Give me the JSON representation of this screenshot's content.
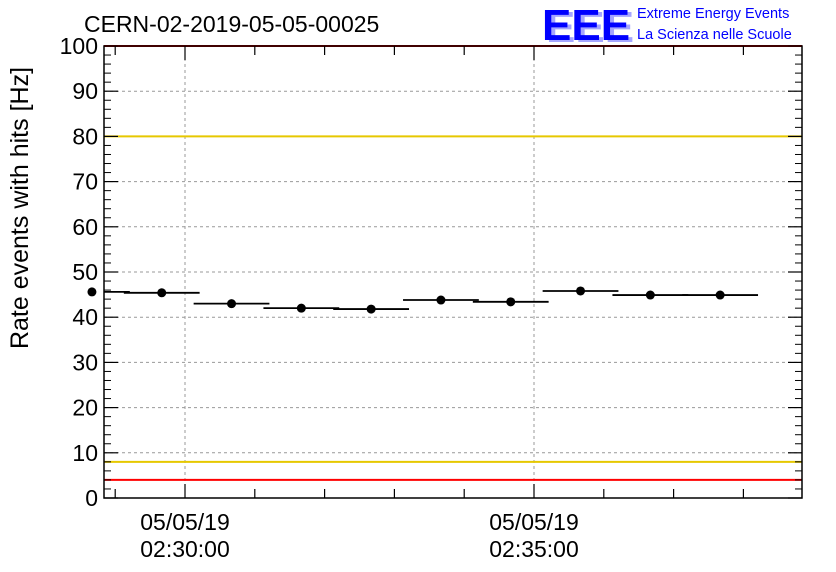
{
  "chart_data": {
    "type": "scatter",
    "title": "CERN-02-2019-05-05-00025",
    "xlabel": "",
    "ylabel": "Rate events with hits [Hz]",
    "ylim": [
      0,
      100
    ],
    "y_ticks": [
      0,
      10,
      20,
      30,
      40,
      50,
      60,
      70,
      80,
      90,
      100
    ],
    "x_ticks": [
      {
        "date": "05/05/19",
        "time": "02:30:00"
      },
      {
        "date": "05/05/19",
        "time": "02:35:00"
      }
    ],
    "grid": true,
    "series": [
      {
        "x_minutes_labels": [
          "02:28:40",
          "02:29:40",
          "02:30:40",
          "02:31:40",
          "02:32:40",
          "02:33:40",
          "02:34:40",
          "02:35:40",
          "02:36:40",
          "02:37:40"
        ],
        "values": [
          45.6,
          45.4,
          43.0,
          42.0,
          41.8,
          43.8,
          43.4,
          45.8,
          44.9,
          44.9
        ]
      }
    ],
    "reference_lines": [
      {
        "value": 100,
        "color": "#ff0000"
      },
      {
        "value": 80,
        "color": "#e6c800"
      },
      {
        "value": 8,
        "color": "#e6c800"
      },
      {
        "value": 4,
        "color": "#ff0000"
      }
    ]
  },
  "logo": {
    "text": "EEE",
    "line1": "Extreme Energy Events",
    "line2": "La Scienza nelle Scuole",
    "color": "#0000ff"
  }
}
